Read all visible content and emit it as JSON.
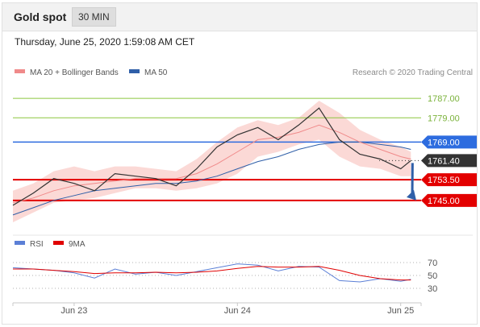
{
  "header": {
    "title": "Gold spot",
    "timeframe": "30 MIN"
  },
  "datetime": "Thursday, June 25, 2020 1:59:08 AM CET",
  "legend": {
    "items": [
      {
        "label": "MA 20 + Bollinger Bands",
        "color": "#f08a8a"
      },
      {
        "label": "MA 50",
        "color": "#2f5fa8"
      }
    ],
    "credit": "Research © 2020 Trading Central"
  },
  "rsi_legend": [
    {
      "label": "RSI",
      "color": "#5b7fd6"
    },
    {
      "label": "9MA",
      "color": "#e00000"
    }
  ],
  "levels": [
    {
      "value": 1787.0,
      "label": "1787.00",
      "kind": "target",
      "color": "#8cc63f"
    },
    {
      "value": 1779.0,
      "label": "1779.00",
      "kind": "target",
      "color": "#8cc63f"
    },
    {
      "value": 1769.0,
      "label": "1769.00",
      "kind": "pivot",
      "color": "#2d6cdf"
    },
    {
      "value": 1761.4,
      "label": "1761.40",
      "kind": "last",
      "color": "#333333"
    },
    {
      "value": 1753.5,
      "label": "1753.50",
      "kind": "support",
      "color": "#e30000"
    },
    {
      "value": 1745.0,
      "label": "1745.00",
      "kind": "support",
      "color": "#e30000"
    }
  ],
  "rsi_levels": [
    "70",
    "50",
    "30"
  ],
  "x_ticks": [
    "Jun 23",
    "Jun 24",
    "Jun 25"
  ],
  "chart_data": {
    "type": "line",
    "title": "",
    "instrument": "Gold spot",
    "interval": "30 MIN",
    "y_range": [
      1734,
      1795
    ],
    "x_range": [
      "2020-06-22 15:00",
      "2020-06-25 03:00"
    ],
    "close_series": {
      "name": "Price",
      "x": [
        "2020-06-22 15:00",
        "2020-06-22 18:00",
        "2020-06-22 21:00",
        "2020-06-23 00:00",
        "2020-06-23 03:00",
        "2020-06-23 06:00",
        "2020-06-23 09:00",
        "2020-06-23 12:00",
        "2020-06-23 15:00",
        "2020-06-23 18:00",
        "2020-06-23 21:00",
        "2020-06-24 00:00",
        "2020-06-24 03:00",
        "2020-06-24 06:00",
        "2020-06-24 09:00",
        "2020-06-24 12:00",
        "2020-06-24 15:00",
        "2020-06-24 18:00",
        "2020-06-24 21:00",
        "2020-06-25 00:00",
        "2020-06-25 01:30"
      ],
      "values": [
        1743,
        1748,
        1754,
        1752,
        1749,
        1756,
        1755,
        1754,
        1751,
        1758,
        1767,
        1772,
        1775,
        1770,
        1776,
        1783,
        1770,
        1764,
        1762,
        1758,
        1761.4
      ]
    },
    "series": [
      {
        "name": "MA 20",
        "values": [
          1744,
          1746,
          1749,
          1751,
          1752,
          1753,
          1754,
          1754,
          1754,
          1756,
          1760,
          1765,
          1770,
          1771,
          1773,
          1776,
          1773,
          1769,
          1766,
          1763,
          1762
        ]
      },
      {
        "name": "MA 50",
        "values": [
          1739,
          1742,
          1745,
          1747,
          1749,
          1750,
          1751,
          1752,
          1752,
          1753,
          1755,
          1758,
          1761,
          1763,
          1766,
          1768,
          1769,
          1769,
          1768,
          1767,
          1766
        ]
      }
    ],
    "bollinger": {
      "upper": [
        1749,
        1752,
        1757,
        1759,
        1757,
        1759,
        1759,
        1758,
        1757,
        1762,
        1769,
        1775,
        1778,
        1776,
        1779,
        1786,
        1781,
        1774,
        1770,
        1767,
        1765
      ],
      "lower": [
        1736,
        1740,
        1744,
        1745,
        1746,
        1748,
        1750,
        1750,
        1749,
        1750,
        1752,
        1756,
        1763,
        1765,
        1768,
        1770,
        1763,
        1759,
        1758,
        1755,
        1755
      ]
    },
    "rsi": {
      "y_range": [
        20,
        80
      ],
      "rsi": [
        62,
        60,
        58,
        54,
        46,
        60,
        52,
        55,
        50,
        56,
        62,
        68,
        66,
        57,
        64,
        63,
        42,
        40,
        45,
        41,
        44
      ],
      "ma9": [
        60,
        60,
        58,
        56,
        53,
        54,
        54,
        55,
        54,
        55,
        57,
        61,
        64,
        63,
        63,
        64,
        58,
        50,
        45,
        43,
        43
      ]
    },
    "forecast": "down toward 1745.00"
  }
}
